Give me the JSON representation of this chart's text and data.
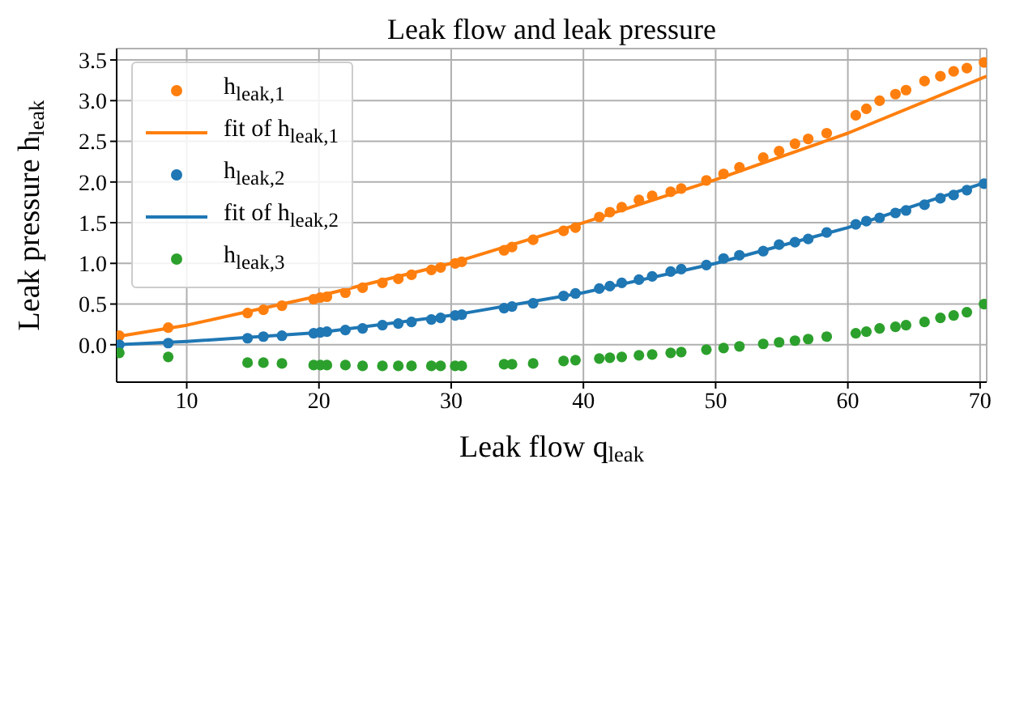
{
  "chart_data": {
    "type": "scatter",
    "title": "Leak flow and leak pressure",
    "xlabel": "Leak flow q$_{leak}$",
    "ylabel": "Leak pressure h$_{leak}$",
    "x": [
      4.9,
      8.6,
      14.6,
      15.8,
      17.2,
      19.6,
      20.1,
      20.6,
      22.0,
      23.3,
      24.8,
      26.0,
      27.0,
      28.5,
      29.2,
      30.3,
      30.8,
      34.0,
      34.6,
      36.2,
      38.5,
      39.4,
      41.2,
      42.0,
      42.9,
      44.2,
      45.2,
      46.6,
      47.4,
      49.3,
      50.6,
      51.8,
      53.6,
      54.8,
      56.0,
      57.0,
      58.4,
      60.6,
      61.4,
      62.4,
      63.6,
      64.4,
      65.8,
      67.0,
      68.0,
      69.0,
      70.3
    ],
    "series": [
      {
        "name": "h$_{leak,1}$",
        "color": "#ff7f0e",
        "values": [
          0.11,
          0.21,
          0.39,
          0.43,
          0.48,
          0.56,
          0.58,
          0.59,
          0.64,
          0.7,
          0.76,
          0.81,
          0.86,
          0.92,
          0.95,
          1.0,
          1.02,
          1.16,
          1.2,
          1.29,
          1.4,
          1.44,
          1.57,
          1.63,
          1.69,
          1.78,
          1.83,
          1.88,
          1.92,
          2.02,
          2.1,
          2.18,
          2.3,
          2.38,
          2.47,
          2.53,
          2.6,
          2.82,
          2.9,
          3.0,
          3.08,
          3.13,
          3.24,
          3.3,
          3.36,
          3.4,
          3.47
        ]
      },
      {
        "name": "fit of h$_{leak,1}$",
        "type": "line",
        "marker": "none",
        "color": "#ff7f0e",
        "x": [
          4.7,
          10,
          15,
          20,
          30,
          40,
          50,
          60,
          70.5
        ],
        "values": [
          0.1,
          0.24,
          0.42,
          0.6,
          1.0,
          1.5,
          2.03,
          2.6,
          3.3
        ]
      },
      {
        "name": "h$_{leak,2}$",
        "color": "#1f77b4",
        "values": [
          0.0,
          0.02,
          0.08,
          0.1,
          0.11,
          0.14,
          0.15,
          0.16,
          0.18,
          0.2,
          0.24,
          0.26,
          0.28,
          0.31,
          0.33,
          0.36,
          0.37,
          0.45,
          0.47,
          0.51,
          0.6,
          0.63,
          0.69,
          0.72,
          0.76,
          0.8,
          0.84,
          0.9,
          0.93,
          0.98,
          1.06,
          1.1,
          1.15,
          1.23,
          1.26,
          1.3,
          1.38,
          1.48,
          1.52,
          1.56,
          1.62,
          1.65,
          1.72,
          1.8,
          1.84,
          1.9,
          1.98
        ]
      },
      {
        "name": "fit of h$_{leak,2}$",
        "type": "line",
        "marker": "none",
        "color": "#1f77b4",
        "x": [
          4.7,
          10,
          20,
          30,
          40,
          50,
          60,
          70.5
        ],
        "values": [
          0.0,
          0.04,
          0.15,
          0.36,
          0.64,
          1.0,
          1.44,
          2.0
        ]
      },
      {
        "name": "h$_{leak,3}$",
        "color": "#2ca02c",
        "values": [
          -0.1,
          -0.15,
          -0.22,
          -0.22,
          -0.23,
          -0.25,
          -0.25,
          -0.25,
          -0.25,
          -0.26,
          -0.26,
          -0.26,
          -0.26,
          -0.26,
          -0.26,
          -0.26,
          -0.26,
          -0.24,
          -0.24,
          -0.23,
          -0.2,
          -0.19,
          -0.17,
          -0.16,
          -0.15,
          -0.13,
          -0.12,
          -0.1,
          -0.09,
          -0.06,
          -0.04,
          -0.02,
          0.01,
          0.03,
          0.05,
          0.07,
          0.1,
          0.14,
          0.16,
          0.2,
          0.22,
          0.24,
          0.28,
          0.33,
          0.36,
          0.4,
          0.5
        ]
      }
    ],
    "xlim": [
      4.7,
      70.5
    ],
    "xticks": [
      10,
      20,
      30,
      40,
      50,
      60,
      70
    ],
    "ylim": [
      -0.46,
      3.64
    ],
    "yticks": [
      {
        "value": 0,
        "label": "0.0"
      },
      {
        "value": 0.5,
        "label": "0.5"
      },
      {
        "value": 1,
        "label": "1.0"
      },
      {
        "value": 1.5,
        "label": "1.5"
      },
      {
        "value": 2,
        "label": "2.0"
      },
      {
        "value": 2.5,
        "label": "2.5"
      },
      {
        "value": 3,
        "label": "3.0"
      },
      {
        "value": 3.5,
        "label": "3.5"
      }
    ],
    "grid": true,
    "legend": "top left",
    "marker": "circle",
    "line_style": "solid"
  }
}
